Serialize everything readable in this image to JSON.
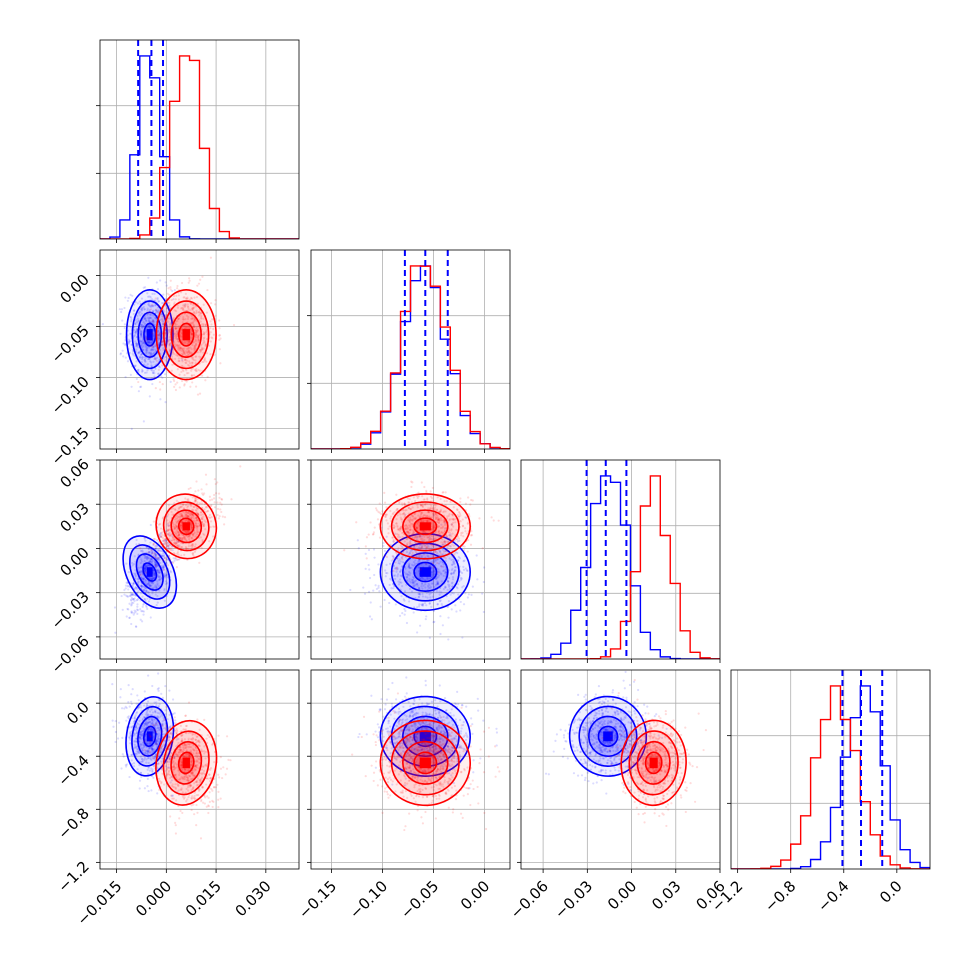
{
  "figure": {
    "type": "corner_plot"
  },
  "colors": {
    "series_a": "#0000ff",
    "series_b": "#ff0000",
    "grid": "#b0b0b0",
    "frame": "#000000"
  },
  "chart_data": {
    "type": "corner",
    "params": [
      {
        "range": [
          -0.02,
          0.04
        ],
        "ticks": [
          -0.015,
          0.0,
          0.015,
          0.03
        ],
        "tick_labels": [
          "−0.015",
          "0.000",
          "0.015",
          "0.030"
        ]
      },
      {
        "range": [
          -0.17,
          0.025
        ],
        "ticks": [
          -0.15,
          -0.1,
          -0.05,
          0.0
        ],
        "tick_labels": [
          "−0.15",
          "−0.10",
          "−0.05",
          "0.00"
        ]
      },
      {
        "range": [
          -0.075,
          0.06
        ],
        "ticks": [
          -0.06,
          -0.03,
          0.0,
          0.03,
          0.06
        ],
        "tick_labels": [
          "−0.06",
          "−0.03",
          "0.00",
          "0.03",
          "0.06"
        ]
      },
      {
        "range": [
          -1.25,
          0.25
        ],
        "ticks": [
          -1.2,
          -0.8,
          -0.4,
          0.0
        ],
        "tick_labels": [
          "−1.2",
          "−0.8",
          "−0.4",
          "0.0"
        ]
      }
    ],
    "series": [
      {
        "color": "#0000ff",
        "means": [
          -0.005,
          -0.058,
          -0.016,
          -0.25
        ],
        "stds": [
          0.0035,
          0.022,
          0.013,
          0.15
        ],
        "quantile_lines": [
          [
            -0.0085,
            -0.0045,
            -0.001
          ],
          [
            -0.078,
            -0.058,
            -0.036
          ],
          [
            -0.0305,
            -0.0175,
            -0.0035
          ],
          [
            -0.41,
            -0.27,
            -0.11
          ]
        ],
        "hist_bins": [
          [
            0.004,
            0.008,
            0.012,
            0.016,
            0.02,
            0.024,
            0.028,
            0.032,
            0.036,
            0.04
          ],
          [
            -0.17,
            -0.16,
            -0.15,
            -0.14,
            -0.13,
            -0.12,
            -0.11,
            -0.1,
            -0.09,
            -0.08,
            -0.07,
            -0.06,
            -0.05,
            -0.04,
            -0.03,
            -0.02,
            -0.01,
            0.0,
            0.01,
            0.02
          ],
          [
            -0.075,
            -0.068,
            -0.061,
            -0.054,
            -0.047,
            -0.04,
            -0.033,
            -0.026,
            -0.019,
            -0.012,
            -0.005,
            0.002,
            0.009,
            0.016,
            0.023,
            0.03,
            0.037,
            0.044,
            0.051
          ],
          [
            -1.2,
            -1.1,
            -1.0,
            -0.9,
            -0.8,
            -0.7,
            -0.6,
            -0.5,
            -0.4,
            -0.3,
            -0.2,
            -0.1,
            0.0,
            0.1,
            0.2
          ]
        ]
      },
      {
        "color": "#ff0000",
        "means": [
          0.006,
          -0.058,
          0.015,
          -0.45
        ],
        "stds": [
          0.0045,
          0.022,
          0.011,
          0.16
        ],
        "quantile_lines": []
      }
    ],
    "correlations": {
      "series_a": [
        [
          1,
          0.0,
          0.55,
          -0.15
        ],
        [
          0.0,
          1,
          0.0,
          -0.1
        ],
        [
          0.55,
          0.0,
          1,
          0.1
        ],
        [
          -0.15,
          -0.1,
          0.1,
          1
        ]
      ],
      "series_b": [
        [
          1,
          0.0,
          0.5,
          -0.2
        ],
        [
          0.0,
          1,
          0.0,
          -0.1
        ],
        [
          0.5,
          0.0,
          1,
          -0.05
        ],
        [
          -0.2,
          -0.1,
          -0.05,
          1
        ]
      ]
    }
  }
}
